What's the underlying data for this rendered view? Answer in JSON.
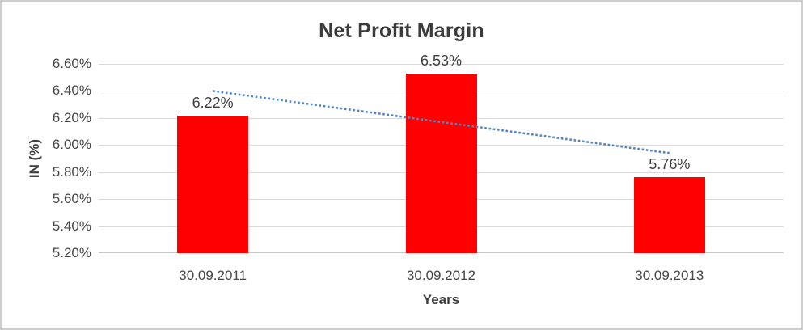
{
  "chart_data": {
    "type": "bar",
    "title": "Net Profit Margin",
    "xlabel": "Years",
    "ylabel": "IN (%)",
    "categories": [
      "30.09.2011",
      "30.09.2012",
      "30.09.2013"
    ],
    "values": [
      6.22,
      6.53,
      5.76
    ],
    "data_labels": [
      "6.22%",
      "6.53%",
      "5.76%"
    ],
    "ylim": [
      5.2,
      6.6
    ],
    "ytick_step": 0.2,
    "ytick_labels": [
      "6.60%",
      "6.40%",
      "6.20%",
      "6.00%",
      "5.80%",
      "5.60%",
      "5.40%",
      "5.20%"
    ],
    "grid": true,
    "legend": "none",
    "trendline": {
      "type": "linear",
      "style": "dotted",
      "value_start": 6.4,
      "value_end": 5.94
    },
    "colors": {
      "bar": "#FF0000",
      "trendline": "#4E86C8",
      "gridline": "#D9D9D9",
      "axis_line": "#C6C6C6",
      "title_text": "#3B3B3B",
      "tick_text": "#474747",
      "border": "#CFCFCF",
      "background": "#FFFFFF"
    }
  }
}
